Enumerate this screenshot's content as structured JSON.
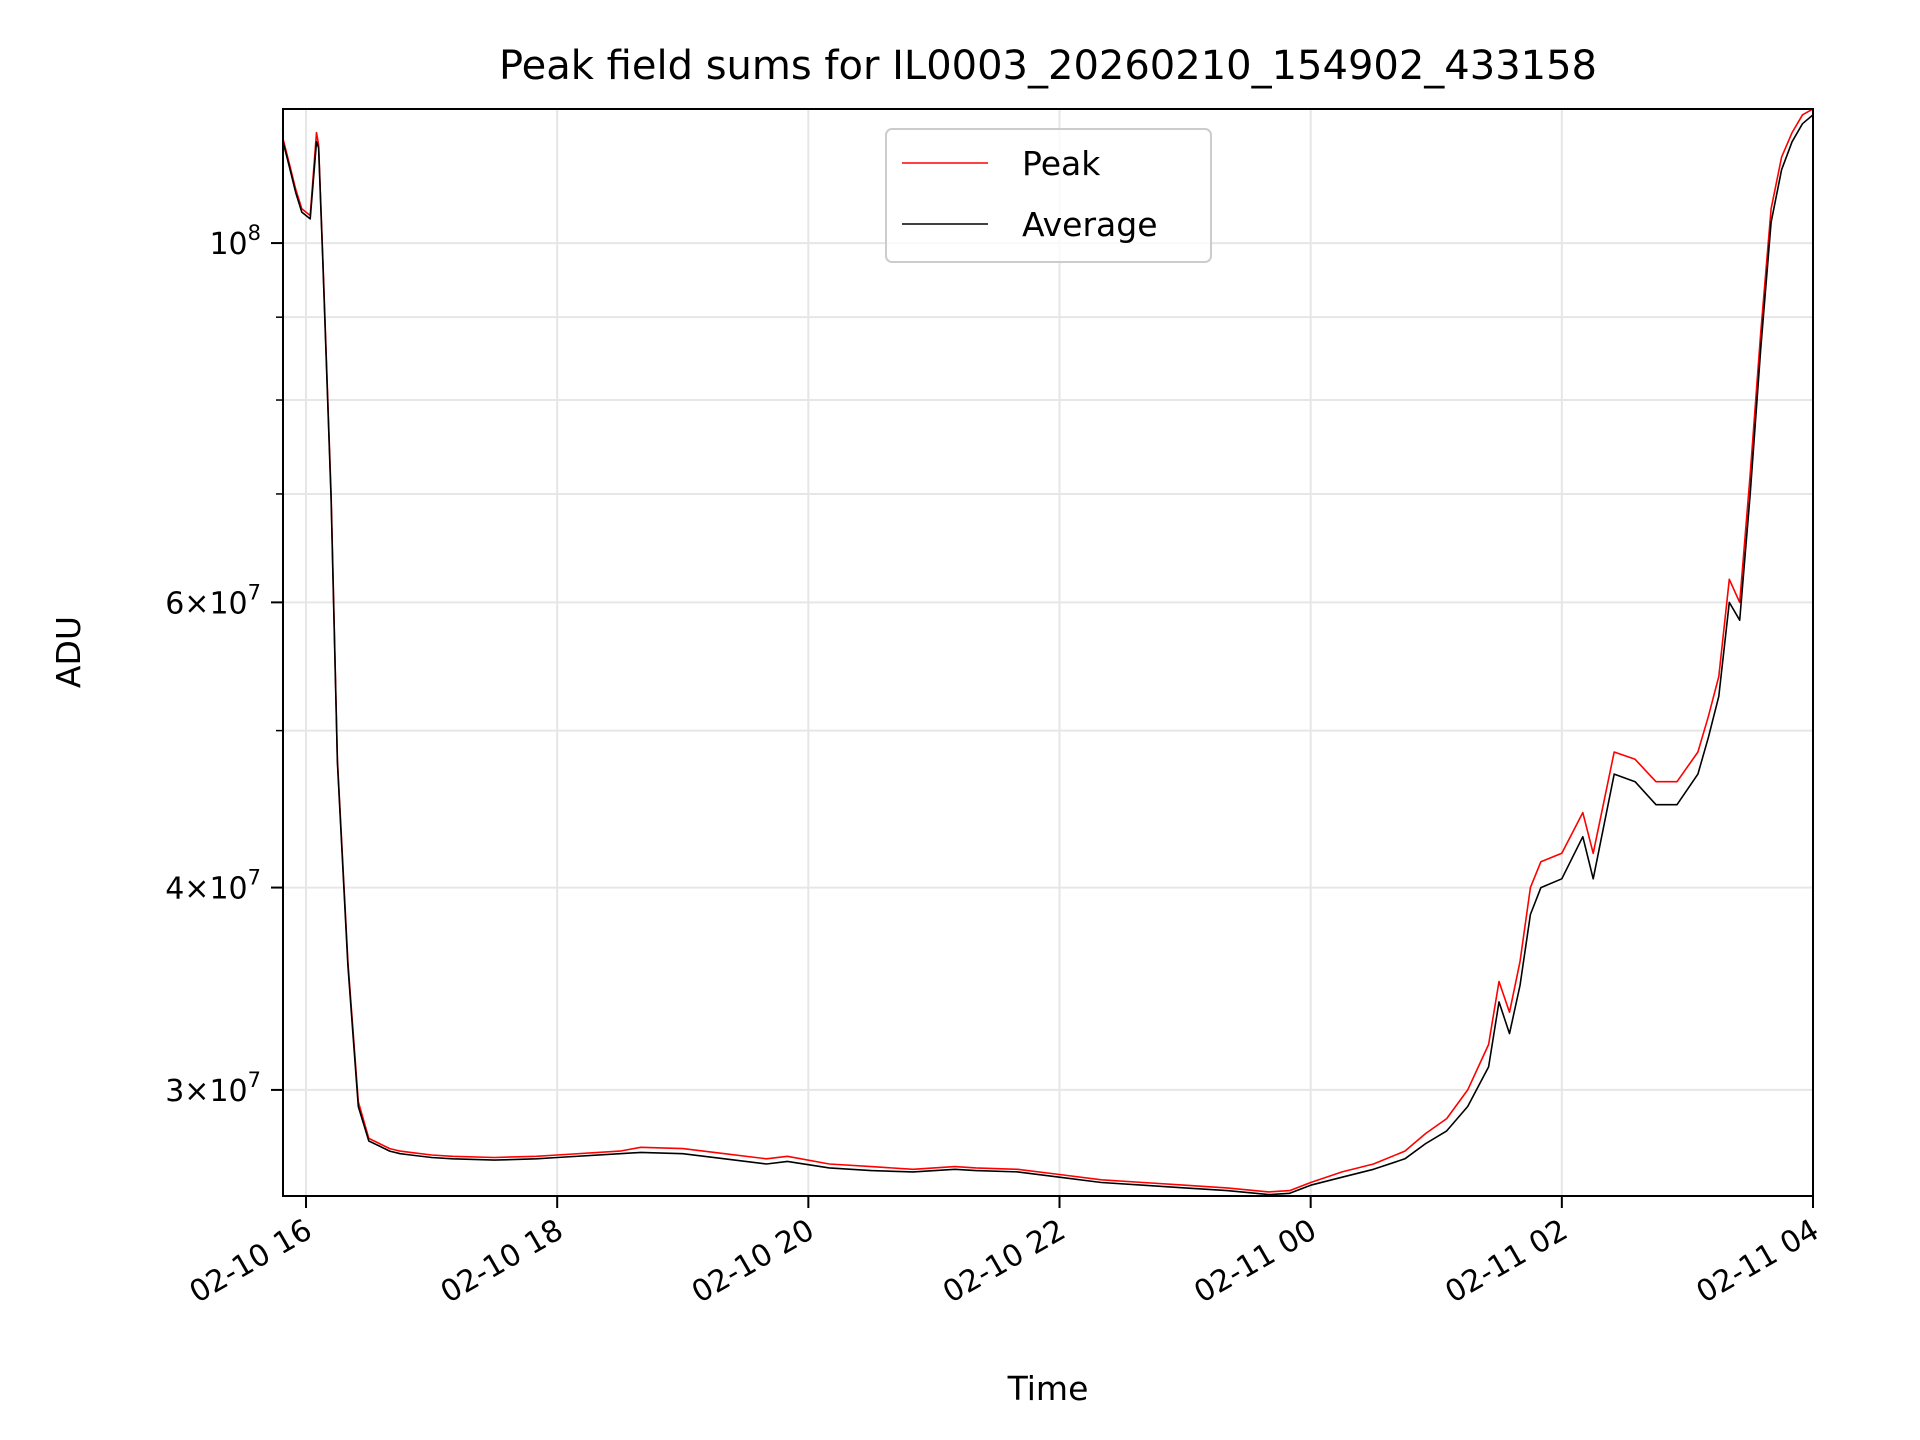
{
  "chart_data": {
    "type": "line",
    "title": "Peak field sums for IL0003_20260210_154902_433158",
    "xlabel": "Time",
    "ylabel": "ADU",
    "yscale": "log",
    "xlim": [
      "2026-02-10 15:49",
      "2026-02-11 04:00"
    ],
    "ylim": [
      25800000,
      121000000
    ],
    "grid": true,
    "legend": {
      "placement": "top-center",
      "entries": [
        "Peak",
        "Average"
      ]
    },
    "x_ticks": [
      {
        "time": "2026-02-10 16:00",
        "label": "02-10 16"
      },
      {
        "time": "2026-02-10 18:00",
        "label": "02-10 18"
      },
      {
        "time": "2026-02-10 20:00",
        "label": "02-10 20"
      },
      {
        "time": "2026-02-10 22:00",
        "label": "02-10 22"
      },
      {
        "time": "2026-02-11 00:00",
        "label": "02-11 00"
      },
      {
        "time": "2026-02-11 02:00",
        "label": "02-11 02"
      },
      {
        "time": "2026-02-11 04:00",
        "label": "02-11 04"
      }
    ],
    "y_major_ticks": [
      {
        "value": 30000000,
        "mantissa": "3",
        "exponent": "7"
      },
      {
        "value": 40000000,
        "mantissa": "4",
        "exponent": "7"
      },
      {
        "value": 60000000,
        "mantissa": "6",
        "exponent": "7"
      },
      {
        "value": 100000000,
        "mantissa": "",
        "exponent": "8"
      }
    ],
    "y_minor_ticks": [
      50000000,
      70000000,
      80000000,
      90000000
    ],
    "series": [
      {
        "name": "Peak",
        "color": "#ff0000",
        "x": [
          "2026-02-10 15:49",
          "2026-02-10 15:52",
          "2026-02-10 15:55",
          "2026-02-10 15:58",
          "2026-02-10 16:02",
          "2026-02-10 16:05",
          "2026-02-10 16:06",
          "2026-02-10 16:08",
          "2026-02-10 16:12",
          "2026-02-10 16:15",
          "2026-02-10 16:20",
          "2026-02-10 16:25",
          "2026-02-10 16:30",
          "2026-02-10 16:35",
          "2026-02-10 16:40",
          "2026-02-10 16:45",
          "2026-02-10 16:50",
          "2026-02-10 17:00",
          "2026-02-10 17:10",
          "2026-02-10 17:30",
          "2026-02-10 17:50",
          "2026-02-10 18:00",
          "2026-02-10 18:30",
          "2026-02-10 18:40",
          "2026-02-10 19:00",
          "2026-02-10 19:20",
          "2026-02-10 19:40",
          "2026-02-10 19:50",
          "2026-02-10 20:10",
          "2026-02-10 20:30",
          "2026-02-10 20:50",
          "2026-02-10 21:10",
          "2026-02-10 21:20",
          "2026-02-10 21:40",
          "2026-02-10 22:00",
          "2026-02-10 22:20",
          "2026-02-10 22:40",
          "2026-02-10 23:00",
          "2026-02-10 23:20",
          "2026-02-10 23:40",
          "2026-02-10 23:50",
          "2026-02-11 00:00",
          "2026-02-11 00:15",
          "2026-02-11 00:30",
          "2026-02-11 00:45",
          "2026-02-11 00:55",
          "2026-02-11 01:05",
          "2026-02-11 01:15",
          "2026-02-11 01:25",
          "2026-02-11 01:30",
          "2026-02-11 01:35",
          "2026-02-11 01:40",
          "2026-02-11 01:45",
          "2026-02-11 01:50",
          "2026-02-11 02:00",
          "2026-02-11 02:10",
          "2026-02-11 02:15",
          "2026-02-11 02:25",
          "2026-02-11 02:35",
          "2026-02-11 02:45",
          "2026-02-11 02:55",
          "2026-02-11 03:05",
          "2026-02-11 03:10",
          "2026-02-11 03:15",
          "2026-02-11 03:20",
          "2026-02-11 03:25",
          "2026-02-11 03:30",
          "2026-02-11 03:35",
          "2026-02-11 03:40",
          "2026-02-11 03:45",
          "2026-02-11 03:50",
          "2026-02-11 03:55",
          "2026-02-11 04:00"
        ],
        "values": [
          116000000,
          112000000,
          108000000,
          105000000,
          104000000,
          117000000,
          115000000,
          98000000,
          70000000,
          48000000,
          36000000,
          29500000,
          28000000,
          27800000,
          27600000,
          27500000,
          27450000,
          27350000,
          27300000,
          27250000,
          27300000,
          27350000,
          27500000,
          27650000,
          27600000,
          27400000,
          27200000,
          27300000,
          27000000,
          26900000,
          26800000,
          26900000,
          26850000,
          26800000,
          26600000,
          26400000,
          26300000,
          26200000,
          26100000,
          25950000,
          26000000,
          26300000,
          26700000,
          27000000,
          27500000,
          28200000,
          28800000,
          30000000,
          32000000,
          35000000,
          33500000,
          36000000,
          40000000,
          41500000,
          42000000,
          44500000,
          42000000,
          48500000,
          48000000,
          46500000,
          46500000,
          48500000,
          51000000,
          54000000,
          62000000,
          60000000,
          72000000,
          88000000,
          105000000,
          113000000,
          117000000,
          120000000,
          121000000
        ]
      },
      {
        "name": "Average",
        "color": "#000000",
        "x": [
          "2026-02-10 15:49",
          "2026-02-10 15:52",
          "2026-02-10 15:55",
          "2026-02-10 15:58",
          "2026-02-10 16:02",
          "2026-02-10 16:05",
          "2026-02-10 16:06",
          "2026-02-10 16:08",
          "2026-02-10 16:12",
          "2026-02-10 16:15",
          "2026-02-10 16:20",
          "2026-02-10 16:25",
          "2026-02-10 16:30",
          "2026-02-10 16:35",
          "2026-02-10 16:40",
          "2026-02-10 16:45",
          "2026-02-10 16:50",
          "2026-02-10 17:00",
          "2026-02-10 17:10",
          "2026-02-10 17:30",
          "2026-02-10 17:50",
          "2026-02-10 18:00",
          "2026-02-10 18:30",
          "2026-02-10 18:40",
          "2026-02-10 19:00",
          "2026-02-10 19:20",
          "2026-02-10 19:40",
          "2026-02-10 19:50",
          "2026-02-10 20:10",
          "2026-02-10 20:30",
          "2026-02-10 20:50",
          "2026-02-10 21:10",
          "2026-02-10 21:20",
          "2026-02-10 21:40",
          "2026-02-10 22:00",
          "2026-02-10 22:20",
          "2026-02-10 22:40",
          "2026-02-10 23:00",
          "2026-02-10 23:20",
          "2026-02-10 23:40",
          "2026-02-10 23:50",
          "2026-02-11 00:00",
          "2026-02-11 00:15",
          "2026-02-11 00:30",
          "2026-02-11 00:45",
          "2026-02-11 00:55",
          "2026-02-11 01:05",
          "2026-02-11 01:15",
          "2026-02-11 01:25",
          "2026-02-11 01:30",
          "2026-02-11 01:35",
          "2026-02-11 01:40",
          "2026-02-11 01:45",
          "2026-02-11 01:50",
          "2026-02-11 02:00",
          "2026-02-11 02:10",
          "2026-02-11 02:15",
          "2026-02-11 02:25",
          "2026-02-11 02:35",
          "2026-02-11 02:45",
          "2026-02-11 02:55",
          "2026-02-11 03:05",
          "2026-02-11 03:10",
          "2026-02-11 03:15",
          "2026-02-11 03:20",
          "2026-02-11 03:25",
          "2026-02-11 03:30",
          "2026-02-11 03:35",
          "2026-02-11 03:40",
          "2026-02-11 03:45",
          "2026-02-11 03:50",
          "2026-02-11 03:55",
          "2026-02-11 04:00"
        ],
        "values": [
          115500000,
          111500000,
          107500000,
          104500000,
          103500000,
          115500000,
          114500000,
          97500000,
          69500000,
          47800000,
          35800000,
          29300000,
          27900000,
          27700000,
          27500000,
          27400000,
          27350000,
          27250000,
          27200000,
          27150000,
          27200000,
          27250000,
          27400000,
          27450000,
          27400000,
          27200000,
          27000000,
          27100000,
          26850000,
          26750000,
          26700000,
          26800000,
          26750000,
          26700000,
          26500000,
          26300000,
          26200000,
          26100000,
          26000000,
          25850000,
          25900000,
          26200000,
          26500000,
          26800000,
          27200000,
          27800000,
          28300000,
          29300000,
          31000000,
          34000000,
          32500000,
          34800000,
          38500000,
          40000000,
          40500000,
          43000000,
          40500000,
          47000000,
          46500000,
          45000000,
          45000000,
          47000000,
          49500000,
          52500000,
          60000000,
          58500000,
          70000000,
          86000000,
          103000000,
          111000000,
          115500000,
          118500000,
          120000000
        ]
      }
    ]
  }
}
